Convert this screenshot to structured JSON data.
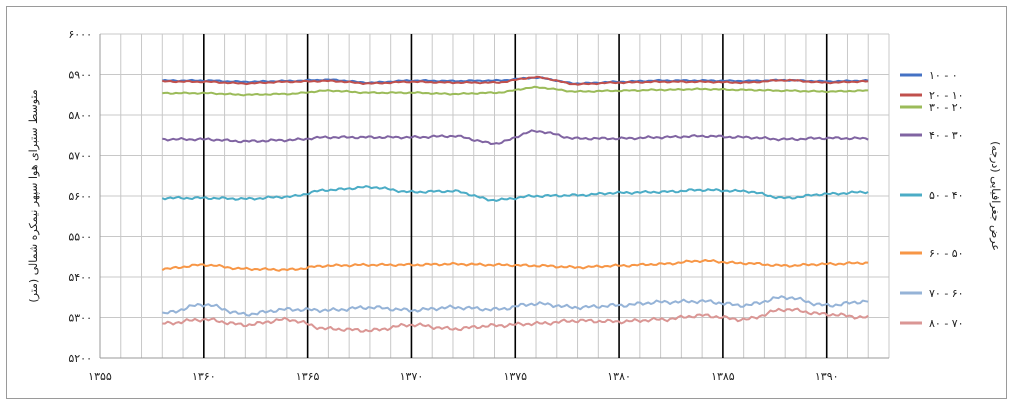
{
  "chart_data": {
    "type": "line",
    "ylabel": "متوسط ستبرای هوا سپهر نیمکره شمالی (متر)",
    "xlabel": "",
    "right_label": "عرض جغرافیایی (درجه)",
    "ylim": [
      5200,
      6000
    ],
    "xlim": [
      1355,
      1393
    ],
    "y_ticks": [
      5200,
      5300,
      5400,
      5500,
      5600,
      5700,
      5800,
      5900,
      6000
    ],
    "y_tick_labels": [
      "۵۲۰۰",
      "۵۳۰۰",
      "۵۴۰۰",
      "۵۵۰۰",
      "۵۶۰۰",
      "۵۷۰۰",
      "۵۸۰۰",
      "۵۹۰۰",
      "۶۰۰۰"
    ],
    "x_ticks": [
      1355,
      1360,
      1365,
      1370,
      1375,
      1380,
      1385,
      1390
    ],
    "x_tick_labels": [
      "۱۳۵۵",
      "۱۳۶۰",
      "۱۳۶۵",
      "۱۳۷۰",
      "۱۳۷۵",
      "۱۳۸۰",
      "۱۳۸۵",
      "۱۳۹۰"
    ],
    "x": [
      1358,
      1360,
      1362,
      1364,
      1366,
      1368,
      1370,
      1372,
      1374,
      1376,
      1378,
      1380,
      1382,
      1384,
      1386,
      1388,
      1390,
      1392
    ],
    "series": [
      {
        "name": "۱۰ - ۰",
        "color": "#4472c4",
        "values": [
          5885,
          5885,
          5882,
          5884,
          5887,
          5880,
          5885,
          5884,
          5885,
          5892,
          5878,
          5882,
          5885,
          5885,
          5884,
          5886,
          5883,
          5885
        ]
      },
      {
        "name": "۲۰ - ۱۰",
        "color": "#c0504d",
        "values": [
          5883,
          5882,
          5878,
          5882,
          5884,
          5878,
          5882,
          5880,
          5880,
          5893,
          5876,
          5880,
          5882,
          5882,
          5880,
          5886,
          5880,
          5883
        ]
      },
      {
        "name": "۳۰ - ۲۰",
        "color": "#9bbb59",
        "values": [
          5854,
          5854,
          5850,
          5852,
          5860,
          5855,
          5855,
          5852,
          5855,
          5868,
          5858,
          5860,
          5862,
          5864,
          5862,
          5860,
          5858,
          5860
        ]
      },
      {
        "name": "۴۰ - ۳۰",
        "color": "#8064a2",
        "values": [
          5740,
          5740,
          5735,
          5738,
          5745,
          5745,
          5745,
          5748,
          5730,
          5760,
          5742,
          5742,
          5745,
          5748,
          5745,
          5740,
          5743,
          5742
        ]
      },
      {
        "name": "۵۰ - ۴۰",
        "color": "#4bacc6",
        "values": [
          5595,
          5595,
          5593,
          5598,
          5615,
          5622,
          5610,
          5612,
          5590,
          5600,
          5602,
          5608,
          5610,
          5615,
          5612,
          5595,
          5605,
          5610
        ]
      },
      {
        "name": "۶۰ - ۵۰",
        "color": "#f79646",
        "values": [
          5420,
          5430,
          5420,
          5418,
          5428,
          5430,
          5430,
          5432,
          5430,
          5428,
          5424,
          5428,
          5432,
          5440,
          5434,
          5428,
          5432,
          5435
        ]
      },
      {
        "name": "۷۰ - ۶۰",
        "color": "#95b3d7",
        "values": [
          5310,
          5332,
          5308,
          5320,
          5318,
          5325,
          5318,
          5325,
          5320,
          5334,
          5325,
          5330,
          5338,
          5340,
          5330,
          5350,
          5330,
          5340
        ]
      },
      {
        "name": "۸۰ - ۷۰",
        "color": "#da9694",
        "values": [
          5285,
          5295,
          5282,
          5295,
          5272,
          5268,
          5282,
          5272,
          5280,
          5285,
          5292,
          5290,
          5295,
          5305,
          5295,
          5320,
          5308,
          5300
        ]
      }
    ]
  }
}
